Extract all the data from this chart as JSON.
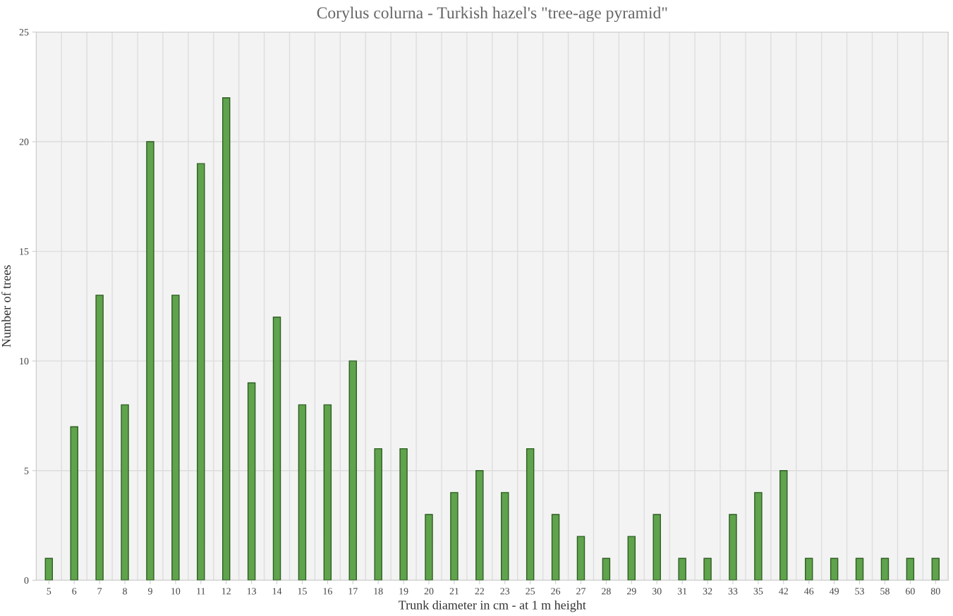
{
  "chart_data": {
    "type": "bar",
    "title": "Corylus colurna - Turkish hazel's \"tree-age pyramid\"",
    "xlabel": "Trunk diameter in cm - at 1 m height",
    "ylabel": "Number of trees",
    "categories": [
      "5",
      "6",
      "7",
      "8",
      "9",
      "10",
      "11",
      "12",
      "13",
      "14",
      "15",
      "16",
      "17",
      "18",
      "19",
      "20",
      "21",
      "22",
      "23",
      "25",
      "26",
      "27",
      "28",
      "29",
      "30",
      "31",
      "32",
      "33",
      "35",
      "42",
      "46",
      "49",
      "53",
      "58",
      "60",
      "80"
    ],
    "values": [
      1,
      7,
      13,
      8,
      20,
      13,
      19,
      22,
      9,
      12,
      8,
      8,
      10,
      6,
      6,
      3,
      4,
      5,
      4,
      6,
      3,
      2,
      1,
      2,
      3,
      1,
      1,
      3,
      4,
      5,
      1,
      1,
      1,
      1,
      1,
      1
    ],
    "color": "#5fa34c",
    "ylim": [
      0,
      25
    ],
    "yticks": [
      0,
      5,
      10,
      15,
      20,
      25
    ],
    "grid": true
  }
}
